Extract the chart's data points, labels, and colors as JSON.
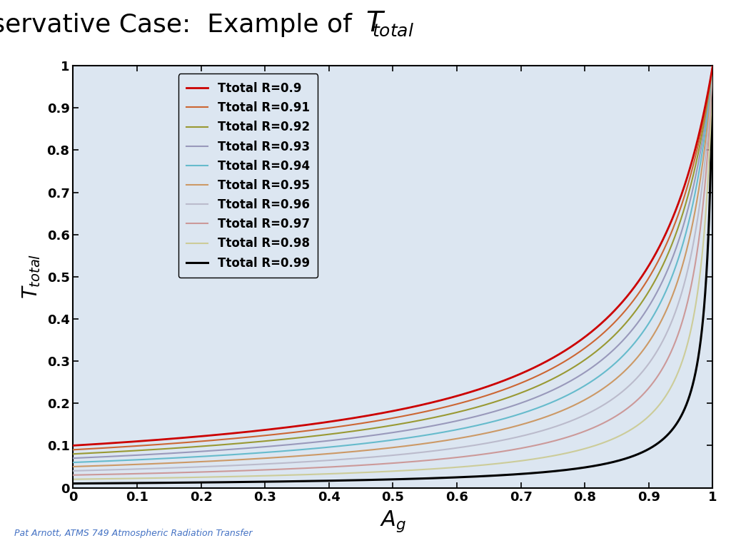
{
  "R_values": [
    0.9,
    0.91,
    0.92,
    0.93,
    0.94,
    0.95,
    0.96,
    0.97,
    0.98,
    0.99
  ],
  "line_colors": [
    "#cc0000",
    "#cc6633",
    "#999933",
    "#9999bb",
    "#66bbcc",
    "#cc9966",
    "#bbbbcc",
    "#cc9999",
    "#cccc99",
    "#000000"
  ],
  "line_widths": [
    2.0,
    1.5,
    1.5,
    1.5,
    1.5,
    1.5,
    1.5,
    1.5,
    1.5,
    2.2
  ],
  "xlim": [
    0,
    1
  ],
  "ylim": [
    0,
    1
  ],
  "plot_bg_color": "#dce6f1",
  "footer_text": "Pat Arnott, ATMS 749 Atmospheric Radiation Transfer",
  "footer_color": "#4472c4",
  "legend_labels": [
    "Ttotal R=0.9",
    "Ttotal R=0.91",
    "Ttotal R=0.92",
    "Ttotal R=0.93",
    "Ttotal R=0.94",
    "Ttotal R=0.95",
    "Ttotal R=0.96",
    "Ttotal R=0.97",
    "Ttotal R=0.98",
    "Ttotal R=0.99"
  ],
  "title_prefix": "Conservative Case:  Example of ",
  "yticks": [
    0,
    0.1,
    0.2,
    0.3,
    0.4,
    0.5,
    0.6,
    0.7,
    0.8,
    0.9,
    1.0
  ],
  "xticks": [
    0,
    0.1,
    0.2,
    0.3,
    0.4,
    0.5,
    0.6,
    0.7,
    0.8,
    0.9,
    1.0
  ]
}
